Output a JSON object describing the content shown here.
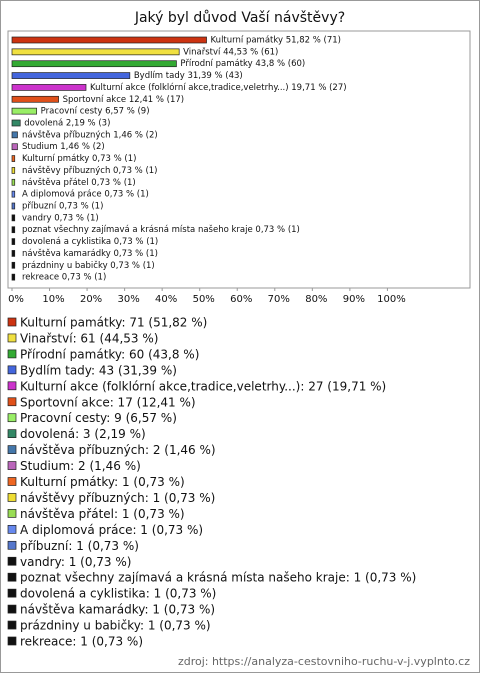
{
  "chart_data": {
    "type": "hbar",
    "title": "Jaký byl důvod Vaší návštěvy?",
    "categories": [
      "Kulturní památky",
      "Vinařství",
      "Přírodní památky",
      "Bydlím tady",
      "Kulturní akce (folklórní akce,tradice,veletrhy...)",
      "Sportovní akce",
      "Pracovní cesty",
      "dovolená",
      "návštěva příbuzných",
      "Studium",
      "Kulturní pmátky",
      "návštěvy příbuzných",
      "návštěva přátel",
      "A diplomová práce",
      "příbuzní",
      "vandry",
      "poznat všechny zajímavá a krásná místa našeho kraje",
      "dovolená a cyklistika",
      "návštěva kamarádky",
      "prázdniny u babičky",
      "rekreace"
    ],
    "values": [
      51.82,
      44.53,
      43.8,
      31.39,
      19.71,
      12.41,
      6.57,
      2.19,
      1.46,
      1.46,
      0.73,
      0.73,
      0.73,
      0.73,
      0.73,
      0.73,
      0.73,
      0.73,
      0.73,
      0.73,
      0.73
    ],
    "value_labels": [
      "Kulturní památky 51,82 % (71)",
      "Vinařství 44,53 % (61)",
      "Přírodní památky 43,8 % (60)",
      "Bydlím tady 31,39 % (43)",
      "Kulturní akce (folklórní akce,tradice,veletrhy...) 19,71 % (27)",
      "Sportovní akce 12,41 % (17)",
      "Pracovní cesty 6,57 % (9)",
      "dovolená 2,19 % (3)",
      "návštěva příbuzných 1,46 % (2)",
      "Studium 1,46 % (2)",
      "Kulturní pmátky 0,73 % (1)",
      "návštěvy příbuzných 0,73 % (1)",
      "návštěva přátel 0,73 % (1)",
      "A diplomová práce 0,73 % (1)",
      "příbuzní 0,73 % (1)",
      "vandry 0,73 % (1)",
      "poznat všechny zajímavá a krásná místa našeho kraje 0,73 % (1)",
      "dovolená a cyklistika 0,73 % (1)",
      "návštěva kamarádky 0,73 % (1)",
      "prázdniny u babičky 0,73 % (1)",
      "rekreace 0,73 % (1)"
    ],
    "legend_labels": [
      "Kulturní památky: 71 (51,82 %)",
      "Vinařství: 61 (44,53 %)",
      "Přírodní památky: 60 (43,8 %)",
      "Bydlím tady: 43 (31,39 %)",
      "Kulturní akce (folklórní akce,tradice,veletrhy...): 27 (19,71 %)",
      "Sportovní akce: 17 (12,41 %)",
      "Pracovní cesty: 9 (6,57 %)",
      "dovolená: 3 (2,19 %)",
      "návštěva příbuzných: 2 (1,46 %)",
      "Studium: 2 (1,46 %)",
      "Kulturní pmátky: 1 (0,73 %)",
      "návštěvy příbuzných: 1 (0,73 %)",
      "návštěva přátel: 1 (0,73 %)",
      "A diplomová práce: 1 (0,73 %)",
      "příbuzní: 1 (0,73 %)",
      "vandry: 1 (0,73 %)",
      "poznat všechny zajímavá a krásná místa našeho kraje: 1 (0,73 %)",
      "dovolená a cyklistika: 1 (0,73 %)",
      "návštěva kamarádky: 1 (0,73 %)",
      "prázdniny u babičky: 1 (0,73 %)",
      "rekreace: 1 (0,73 %)"
    ],
    "colors": [
      "#cc3311",
      "#f0e040",
      "#33aa33",
      "#4466dd",
      "#cc33cc",
      "#e0501a",
      "#99ee66",
      "#338866",
      "#4477aa",
      "#bb66bb",
      "#ee6622",
      "#eedd33",
      "#99dd55",
      "#6688ee",
      "#5577cc",
      "#111111",
      "#111111",
      "#111111",
      "#111111",
      "#111111",
      "#111111"
    ],
    "xlim": [
      0,
      122
    ],
    "xticks": [
      {
        "value": 0,
        "label": "0%"
      },
      {
        "value": 10,
        "label": "10%"
      },
      {
        "value": 20,
        "label": "20%"
      },
      {
        "value": 30,
        "label": "30%"
      },
      {
        "value": 40,
        "label": "40%"
      },
      {
        "value": 50,
        "label": "50%"
      },
      {
        "value": 60,
        "label": "60%"
      },
      {
        "value": 70,
        "label": "70%"
      },
      {
        "value": 80,
        "label": "80%"
      },
      {
        "value": 90,
        "label": "90%"
      },
      {
        "value": 100,
        "label": "100%"
      }
    ],
    "source": "zdroj: https://analyza-cestovniho-ruchu-v-j.vyplnto.cz"
  }
}
